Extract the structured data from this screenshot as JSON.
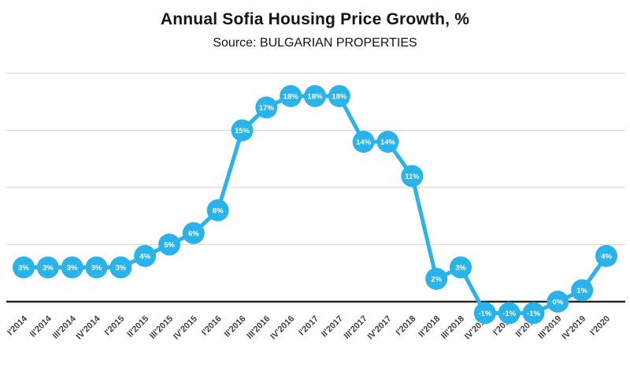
{
  "header": {
    "title": "Annual Sofia Housing Price Growth, %",
    "subtitle": "Source: BULGARIAN PROPERTIES"
  },
  "colors": {
    "accent": "#29b3ea",
    "grid": "#d9d9d9",
    "zero_line": "#262626",
    "marker_label_text": "#ffffff",
    "axis_text": "#3f3f3f",
    "background": "#ffffff"
  },
  "chart_data": {
    "type": "line",
    "title": "Annual Sofia Housing Price Growth, %",
    "subtitle": "Source: BULGARIAN PROPERTIES",
    "categories": [
      "I'2014",
      "II'2014",
      "III'2014",
      "IV'2014",
      "I'2015",
      "II'2015",
      "III'2015",
      "IV'2015",
      "I'2016",
      "II'2016",
      "III'2016",
      "IV'2016",
      "I'2017",
      "II'2017",
      "III'2017",
      "IV'2017",
      "I'2018",
      "II'2018",
      "III'2018",
      "IV'2018",
      "I'2019",
      "II'2019",
      "III'2019",
      "IV'2019",
      "I'2020"
    ],
    "values": [
      3,
      3,
      3,
      3,
      3,
      4,
      5,
      6,
      8,
      15,
      17,
      18,
      18,
      18,
      14,
      14,
      11,
      2,
      3,
      -1,
      -1,
      -1,
      0,
      1,
      4
    ],
    "point_labels": [
      "3%",
      "3%",
      "3%",
      "3%",
      "3%",
      "4%",
      "5%",
      "6%",
      "8%",
      "15%",
      "17%",
      "18%",
      "18%",
      "18%",
      "14%",
      "14%",
      "11%",
      "2%",
      "3%",
      "-1%",
      "-1%",
      "-1%",
      "0%",
      "1%",
      "4%"
    ],
    "xlabel": "",
    "ylabel": "",
    "ylim": [
      -5,
      20
    ],
    "gridline_values": [
      20,
      15,
      10,
      5
    ],
    "zero_axis": 0,
    "grid": true,
    "legend": false,
    "marker": "circle-with-label"
  }
}
